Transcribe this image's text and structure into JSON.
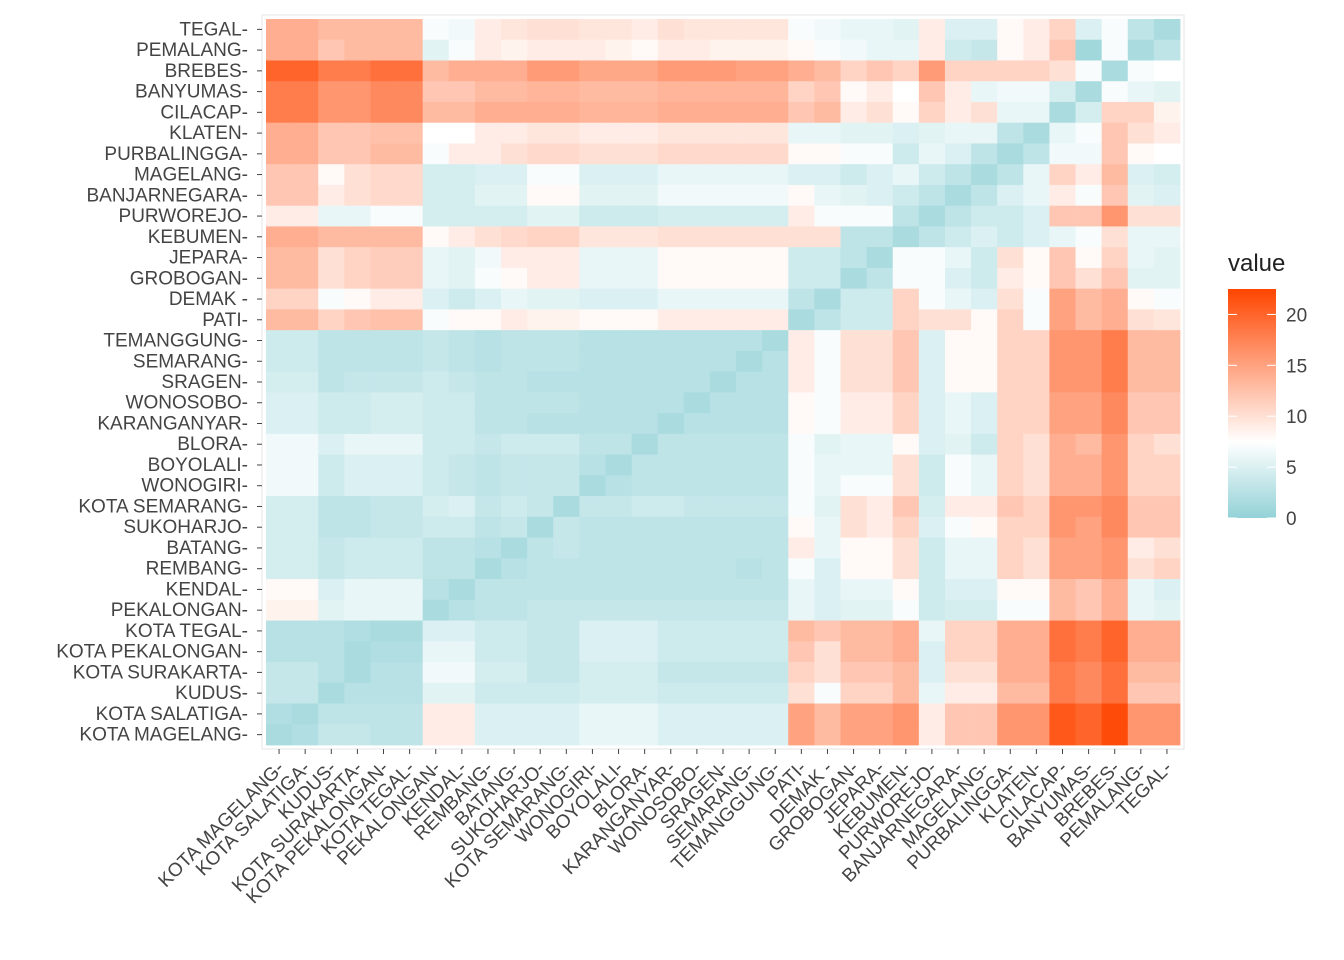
{
  "chart_data": {
    "type": "heatmap",
    "title": "",
    "xlabel": "",
    "ylabel": "",
    "legend": {
      "title": "value",
      "position": "right",
      "ticks": [
        0,
        5,
        10,
        15,
        20
      ],
      "range": [
        0,
        22.5
      ]
    },
    "color_scale": {
      "low": "#93d2d7",
      "mid": "#ffffff",
      "high": "#ff4500",
      "midpoint": 7.5
    },
    "x_categories": [
      "KOTA MAGELANG-",
      "KOTA SALATIGA-",
      "KUDUS-",
      "KOTA SURAKARTA-",
      "KOTA PEKALONGAN-",
      "KOTA TEGAL-",
      "PEKALONGAN-",
      "KENDAL-",
      "REMBANG-",
      "BATANG-",
      "SUKOHARJO-",
      "KOTA SEMARANG-",
      "WONOGIRI-",
      "BOYOLALI-",
      "BLORA-",
      "KARANGANYAR-",
      "WONOSOBO-",
      "SRAGEN-",
      "SEMARANG-",
      "TEMANGGUNG-",
      "PATI-",
      "DEMAK  -",
      "GROBOGAN-",
      "JEPARA-",
      "KEBUMEN-",
      "PURWOREJO-",
      "BANJARNEGARA-",
      "MAGELANG-",
      "PURBALINGGA-",
      "KLATEN-",
      "CILACAP-",
      "BANYUMAS-",
      "BREBES-",
      "PEMALANG-",
      "TEGAL-"
    ],
    "y_categories": [
      "TEGAL-",
      "PEMALANG-",
      "BREBES-",
      "BANYUMAS-",
      "CILACAP-",
      "KLATEN-",
      "PURBALINGGA-",
      "MAGELANG-",
      "BANJARNEGARA-",
      "PURWOREJO-",
      "KEBUMEN-",
      "JEPARA-",
      "GROBOGAN-",
      "DEMAK  -",
      "PATI-",
      "TEMANGGUNG-",
      "SEMARANG-",
      "SRAGEN-",
      "WONOSOBO-",
      "KARANGANYAR-",
      "BLORA-",
      "BOYOLALI-",
      "WONOGIRI-",
      "KOTA SEMARANG-",
      "SUKOHARJO-",
      "BATANG-",
      "REMBANG-",
      "KENDAL-",
      "PEKALONGAN-",
      "KOTA TEGAL-",
      "KOTA PEKALONGAN-",
      "KOTA SURAKARTA-",
      "KUDUS-",
      "KOTA SALATIGA-",
      "KOTA MAGELANG-"
    ],
    "values": [
      [
        14,
        14,
        13,
        13,
        13,
        13,
        7,
        6.5,
        9,
        9.5,
        10,
        10,
        9.5,
        9.5,
        9,
        10,
        9.5,
        9.5,
        9.5,
        9.5,
        7,
        6.5,
        6,
        6,
        5.5,
        9,
        5,
        5,
        8,
        9,
        11,
        5,
        7,
        3,
        1.5
      ],
      [
        14,
        14,
        12,
        13,
        13,
        13,
        5.5,
        7,
        9,
        8.5,
        9,
        9,
        9,
        8.5,
        8,
        9,
        9,
        8.5,
        8.5,
        8.5,
        8,
        7,
        6.5,
        6,
        6,
        9,
        4,
        3.5,
        8,
        9,
        12,
        1,
        7,
        1.5,
        3
      ],
      [
        20,
        20,
        18,
        18,
        19,
        19,
        13,
        14,
        14,
        14,
        15.5,
        15.5,
        14.5,
        14.5,
        14.5,
        15.5,
        15.5,
        15.5,
        15,
        15,
        14,
        13,
        11,
        12,
        11,
        15.5,
        11,
        11,
        11,
        11,
        10,
        7,
        1.5,
        7,
        7.5
      ],
      [
        18,
        18,
        16,
        16,
        17,
        17,
        12,
        12,
        13,
        13,
        13.5,
        13.5,
        13,
        13,
        13,
        13.5,
        13.5,
        13.5,
        13.5,
        13.5,
        11,
        12,
        8,
        9,
        7.5,
        12,
        9,
        6,
        6.5,
        6.5,
        4.5,
        1.5,
        7,
        6,
        5.5
      ],
      [
        18,
        18,
        16,
        16,
        17,
        17,
        13,
        13,
        14,
        14,
        14,
        14,
        13.5,
        13.5,
        13.5,
        14,
        14,
        14,
        14,
        14,
        12,
        13,
        9,
        10,
        8,
        11,
        9,
        10,
        6,
        6,
        1.5,
        4.5,
        11,
        11,
        8.5
      ],
      [
        14,
        14,
        12,
        12,
        12.5,
        12.5,
        7.5,
        7.5,
        9,
        9,
        9.5,
        9.5,
        9,
        9,
        9,
        9.5,
        9.5,
        9.5,
        9.5,
        9.5,
        6,
        6,
        5.5,
        5.5,
        5,
        5.5,
        6,
        6,
        3,
        1.5,
        6,
        7,
        12,
        10,
        9
      ],
      [
        14,
        14,
        12,
        12,
        13,
        13,
        7,
        9,
        9,
        10,
        10.5,
        10.5,
        10,
        10,
        10,
        10.5,
        10.5,
        10.5,
        10.5,
        10.5,
        8,
        8,
        7,
        7,
        4,
        6,
        5,
        3,
        1.5,
        3,
        6.5,
        6.5,
        12,
        8,
        7.5
      ],
      [
        12,
        12,
        8,
        10,
        10.5,
        10.5,
        4.5,
        4.5,
        5,
        5,
        7,
        7,
        5,
        5,
        5,
        6,
        6,
        6,
        6,
        6,
        5,
        5,
        4,
        5,
        6,
        4,
        3,
        1.5,
        3,
        6,
        11,
        9,
        13,
        5,
        4.5
      ],
      [
        12,
        12,
        9,
        10,
        10.5,
        10.5,
        4.5,
        4.5,
        5.5,
        5.5,
        8,
        8,
        5.5,
        5.5,
        5.5,
        6.5,
        6.5,
        6.5,
        6.5,
        6.5,
        8,
        6,
        5.5,
        5,
        4,
        3,
        1.5,
        3,
        5,
        6,
        9,
        7,
        12,
        5.5,
        5
      ],
      [
        9,
        9,
        6,
        6,
        7,
        7,
        4.5,
        4.5,
        4.5,
        4.5,
        5.5,
        5.5,
        4,
        4,
        4,
        4.5,
        4.5,
        4.5,
        4.5,
        4.5,
        9,
        7,
        7,
        7,
        3,
        1.5,
        3,
        4,
        4,
        5,
        12,
        12,
        16,
        10,
        10
      ],
      [
        14,
        14,
        13,
        13,
        13,
        13,
        8,
        9,
        10,
        10.5,
        11,
        11,
        9.5,
        9.5,
        9.5,
        10,
        10,
        10,
        10,
        10,
        10,
        10,
        3,
        3,
        1.5,
        3,
        4,
        5,
        4,
        5,
        6,
        7,
        10,
        6,
        6
      ],
      [
        13,
        13,
        10,
        11,
        11.5,
        11.5,
        6,
        5.5,
        6.5,
        9,
        9,
        9,
        6,
        6,
        6,
        8,
        8,
        8,
        8,
        8,
        4,
        4,
        3,
        1.5,
        7,
        7,
        6,
        4,
        10,
        8,
        12,
        8,
        11,
        6,
        5.5
      ],
      [
        13,
        13,
        10,
        11,
        11.5,
        11.5,
        6,
        5.5,
        7,
        8,
        9,
        9,
        6,
        6,
        6,
        8,
        8,
        8,
        8,
        8,
        4,
        4,
        1.5,
        3,
        7,
        7,
        5,
        4,
        9,
        8,
        12,
        10,
        12,
        5.5,
        5.5
      ],
      [
        11,
        11,
        7,
        8,
        9,
        9,
        5,
        4,
        5,
        6,
        5.5,
        5.5,
        5,
        5,
        5,
        6,
        6,
        6,
        6,
        6,
        3,
        1.5,
        4,
        4,
        11,
        7,
        6,
        5,
        10,
        7,
        15,
        13,
        14,
        8,
        7
      ],
      [
        13,
        13,
        11,
        12,
        12.5,
        12.5,
        7,
        8,
        8,
        9,
        8.5,
        8.5,
        8,
        8,
        8,
        9,
        9,
        9,
        9,
        9,
        1.5,
        3,
        4,
        4,
        11,
        10,
        10,
        8,
        11,
        7,
        15,
        13,
        14,
        10,
        9.5
      ],
      [
        4,
        4,
        3,
        3,
        3,
        3,
        3.5,
        3,
        2.5,
        3,
        3,
        3,
        2.5,
        2.5,
        2.5,
        2.5,
        2.5,
        2.5,
        2.5,
        1.5,
        9,
        7,
        10,
        10,
        12,
        5,
        8,
        8,
        11,
        11,
        16,
        16,
        18,
        13,
        13
      ],
      [
        4,
        4,
        3,
        3,
        3,
        3,
        3.5,
        3,
        2.5,
        3,
        3,
        3,
        2.5,
        2.5,
        2.5,
        2.5,
        2.5,
        2.5,
        1.5,
        2.5,
        9,
        7,
        10,
        10,
        12,
        5,
        8,
        8,
        11,
        11,
        16,
        16,
        18,
        13,
        13
      ],
      [
        4.5,
        4.5,
        3,
        3.5,
        3.5,
        3.5,
        4,
        3.5,
        3,
        3,
        2.5,
        2.5,
        2.5,
        2.5,
        2.5,
        2.5,
        2.5,
        1.5,
        2.5,
        2.5,
        9,
        7,
        10,
        10,
        12,
        5,
        8,
        8,
        11,
        11,
        16,
        16,
        18,
        13,
        13
      ],
      [
        5,
        5,
        4,
        4,
        4.5,
        4.5,
        4,
        4,
        3,
        3,
        3,
        3,
        2.5,
        2.5,
        2.5,
        2.5,
        1.5,
        2.5,
        2.5,
        2.5,
        8,
        7,
        9,
        9,
        11,
        5,
        6,
        5,
        11,
        11,
        15,
        15,
        17,
        12,
        12
      ],
      [
        5,
        5,
        4,
        4,
        4.5,
        4.5,
        4,
        4,
        3,
        3,
        2.5,
        2.5,
        2.5,
        2.5,
        2.5,
        1.5,
        2.5,
        2.5,
        2.5,
        2.5,
        8,
        7,
        9,
        9,
        11,
        5,
        6,
        5,
        11,
        11,
        15,
        15,
        17,
        12,
        12
      ],
      [
        6.5,
        6.5,
        5,
        6,
        6,
        6,
        4,
        4,
        3.5,
        4,
        4,
        4,
        3,
        3,
        1.5,
        3,
        3,
        3,
        3,
        3,
        7,
        5.5,
        6,
        6,
        8,
        5,
        5.5,
        4,
        11,
        10,
        14,
        13,
        16,
        11,
        10
      ],
      [
        6.5,
        6.5,
        4,
        5,
        5,
        5,
        4,
        3.5,
        3,
        3.5,
        3.5,
        3.5,
        2.5,
        1.5,
        3,
        3,
        3,
        3,
        3,
        3,
        7,
        6,
        6,
        6,
        10,
        4,
        7,
        6,
        11,
        10,
        14,
        14,
        16,
        11,
        11
      ],
      [
        6.5,
        6.5,
        4,
        5,
        5,
        5,
        4,
        3.5,
        3,
        3.5,
        3.5,
        3.5,
        1.5,
        2.5,
        3,
        3,
        3,
        3,
        3,
        3,
        7,
        6,
        7,
        7,
        10,
        4,
        7,
        6,
        11,
        10,
        14,
        14,
        16,
        11,
        11
      ],
      [
        4.5,
        4.5,
        3,
        3,
        3.5,
        3.5,
        4.5,
        5,
        3.5,
        4,
        3.5,
        1.5,
        3.5,
        3.5,
        4,
        4,
        3.5,
        3.5,
        3.5,
        3.5,
        7,
        5.5,
        10,
        9,
        12,
        4.5,
        9,
        9,
        12,
        11,
        16,
        16,
        17,
        12,
        12
      ],
      [
        4.5,
        4.5,
        3,
        3,
        3.5,
        3.5,
        4,
        4,
        3,
        3.5,
        1.5,
        3.5,
        3,
        3,
        3,
        3,
        3,
        3,
        3,
        3,
        8,
        6,
        10,
        9,
        11,
        5,
        7,
        8,
        11,
        11,
        16,
        15,
        17,
        12,
        12
      ],
      [
        4.5,
        4.5,
        3.5,
        4,
        4,
        4,
        3,
        3,
        2.5,
        1.5,
        3,
        3.5,
        3,
        3,
        3,
        3,
        3,
        3,
        3,
        3,
        9,
        6,
        8,
        8,
        10,
        4,
        6,
        6,
        11,
        10,
        15,
        15,
        16,
        9,
        10
      ],
      [
        4.5,
        4.5,
        3.5,
        4,
        4,
        4,
        3,
        3,
        1.5,
        2.5,
        3,
        3,
        3,
        3,
        3,
        3,
        3,
        3,
        2.5,
        3,
        7,
        5,
        8,
        8,
        10,
        4,
        6,
        6,
        11,
        10,
        15,
        15,
        16,
        10,
        11
      ],
      [
        8,
        8,
        5,
        6,
        6,
        6,
        2.5,
        1.5,
        3,
        3,
        3,
        3,
        3,
        3,
        3,
        3,
        3,
        3,
        3,
        3,
        6,
        5,
        6,
        6,
        8,
        4,
        5,
        5,
        8,
        8,
        13,
        12,
        14,
        6,
        5
      ],
      [
        8.5,
        8.5,
        5.5,
        6,
        6,
        6,
        1.5,
        2.5,
        3,
        3,
        3.5,
        3.5,
        3.5,
        3.5,
        3.5,
        3.5,
        3.5,
        3.5,
        3.5,
        3.5,
        6,
        5,
        5.5,
        5.5,
        7,
        4,
        4.5,
        4.5,
        7,
        7,
        13,
        12,
        14,
        6,
        5.5
      ],
      [
        2.5,
        2.5,
        2.5,
        2,
        1.5,
        1.5,
        5,
        5,
        4,
        4,
        3.5,
        3.5,
        5,
        5,
        5,
        4,
        4,
        4,
        4,
        4,
        13,
        12,
        13,
        13,
        14,
        6,
        11,
        11,
        14,
        14,
        19,
        18,
        20,
        14,
        14
      ],
      [
        2.5,
        2.5,
        2.5,
        1.5,
        2,
        2,
        6,
        6,
        4,
        4,
        3.5,
        3.5,
        5,
        5,
        5,
        4,
        4,
        4,
        4,
        4,
        12,
        10,
        13,
        13,
        14,
        5,
        11,
        11,
        14,
        14,
        19,
        18,
        20,
        14,
        14
      ],
      [
        3.5,
        3.5,
        2.5,
        1.5,
        2.5,
        2.5,
        6.5,
        6.5,
        4.5,
        4.5,
        3.5,
        3.5,
        4.5,
        4.5,
        4.5,
        3.5,
        3.5,
        3.5,
        3.5,
        3.5,
        11,
        10,
        12,
        12,
        13,
        5,
        10,
        10,
        14,
        14,
        18,
        17,
        19,
        13,
        13
      ],
      [
        3.5,
        3.5,
        1.5,
        2.5,
        2.5,
        2.5,
        5.5,
        5.5,
        4,
        4,
        4,
        4,
        4.5,
        4.5,
        4.5,
        4,
        4,
        4,
        4,
        4,
        10,
        7,
        11,
        11,
        13,
        6,
        9,
        9,
        13,
        13,
        18,
        17,
        19,
        12,
        12
      ],
      [
        2,
        1.5,
        3,
        3,
        3,
        3,
        9,
        9,
        5,
        5,
        5,
        5,
        6,
        6,
        6,
        5,
        5,
        5,
        5,
        5,
        15,
        13,
        15,
        15,
        16,
        9,
        12,
        12,
        16,
        16,
        21,
        20,
        22,
        16,
        16
      ],
      [
        1.5,
        2,
        3.5,
        3.5,
        3,
        3,
        9,
        9,
        5,
        5,
        5,
        5,
        6,
        6,
        6,
        5,
        5,
        5,
        5,
        5,
        15,
        13,
        15,
        15,
        16,
        9,
        12,
        12,
        16,
        16,
        21,
        20,
        22,
        16,
        16
      ]
    ]
  }
}
